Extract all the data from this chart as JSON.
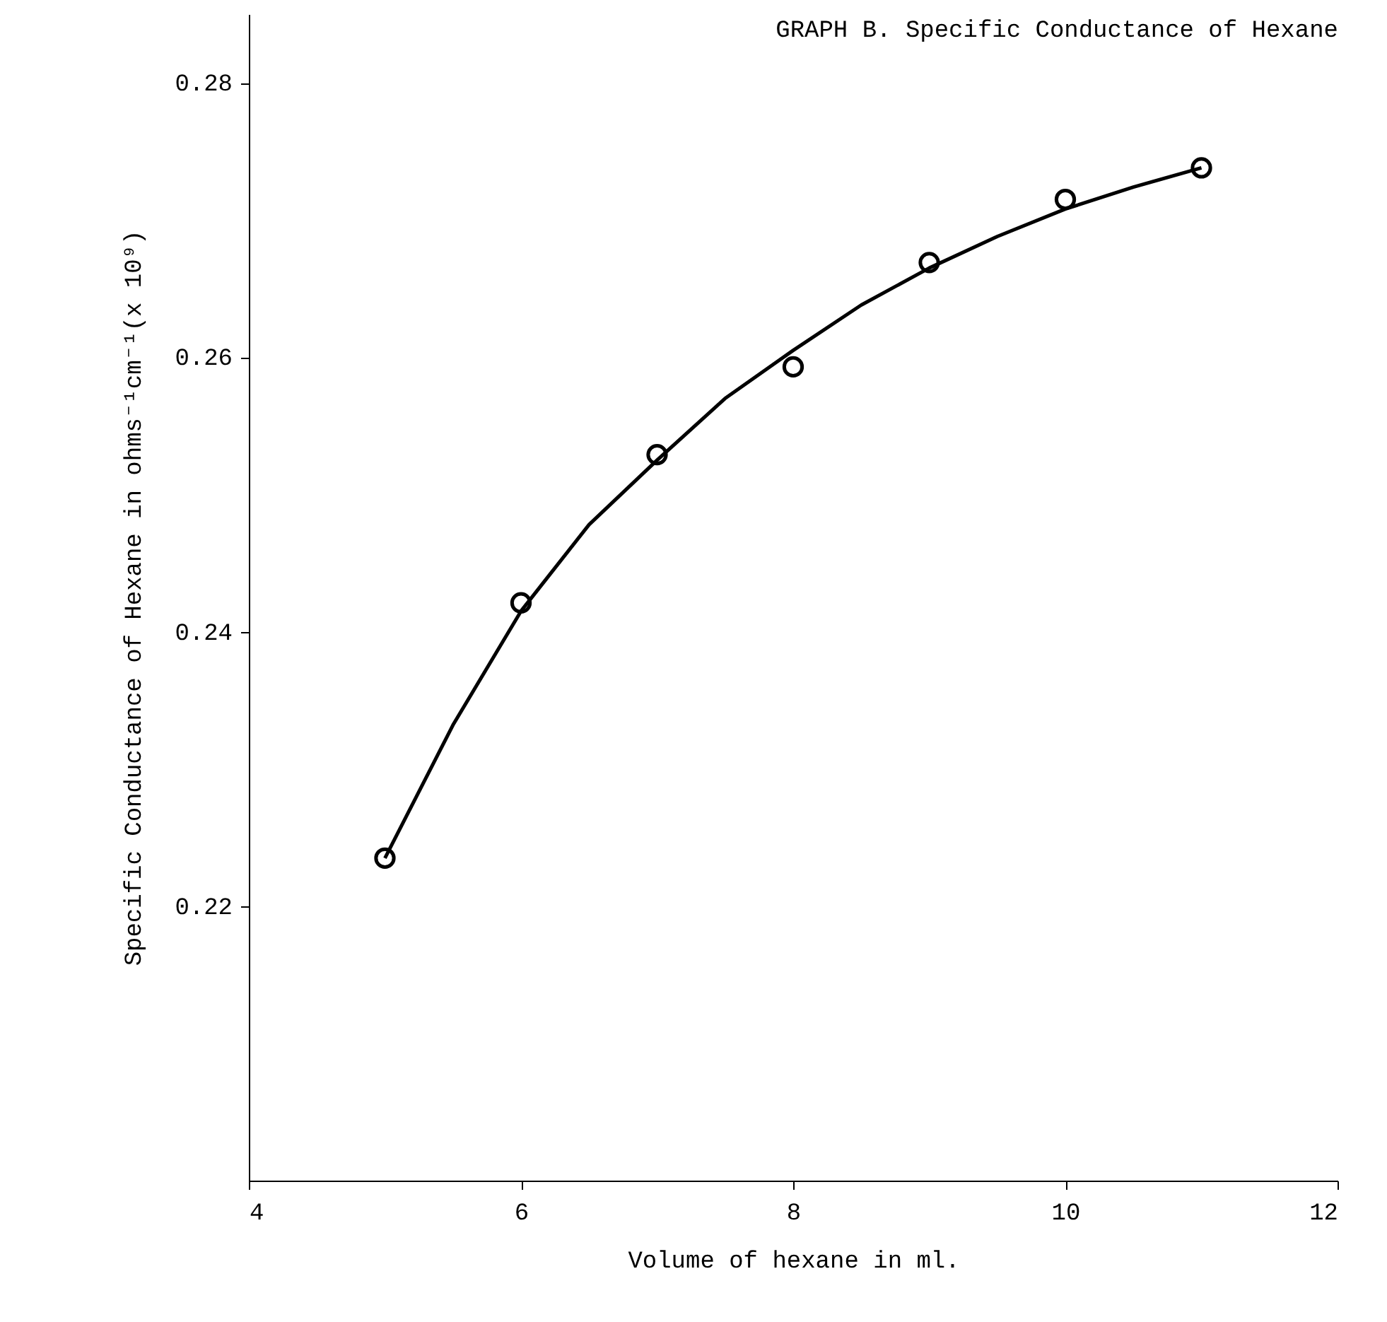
{
  "chart_data": {
    "type": "scatter",
    "title": "GRAPH B.  Specific Conductance of Hexane",
    "xlabel": "Volume of hexane in ml.",
    "ylabel": "Specific Conductance of Hexane in ohms⁻¹cm⁻¹(x 10⁹)",
    "xlim": [
      4,
      12
    ],
    "xticks": [
      4,
      6,
      8,
      10,
      12
    ],
    "ylim": [
      0.2,
      0.285
    ],
    "yticks": [
      0.22,
      0.24,
      0.26,
      0.28
    ],
    "grid": false,
    "series": [
      {
        "color": "#000000",
        "marker": "circle",
        "x": [
          5,
          6,
          7,
          8,
          9,
          10,
          11
        ],
        "values": [
          0.2235,
          0.2421,
          0.2529,
          0.2593,
          0.2669,
          0.2715,
          0.2738
        ]
      },
      {
        "type": "line",
        "color": "#000000",
        "marker": "none",
        "line_style": "solid",
        "x": [
          5,
          5.5,
          6,
          6.5,
          7,
          7.5,
          8,
          8.5,
          9,
          9.5,
          10,
          10.5,
          11
        ],
        "values": [
          0.2235,
          0.2332,
          0.2415,
          0.2478,
          0.2525,
          0.257,
          0.2605,
          0.2638,
          0.2665,
          0.2688,
          0.2708,
          0.2724,
          0.2738
        ]
      }
    ]
  }
}
